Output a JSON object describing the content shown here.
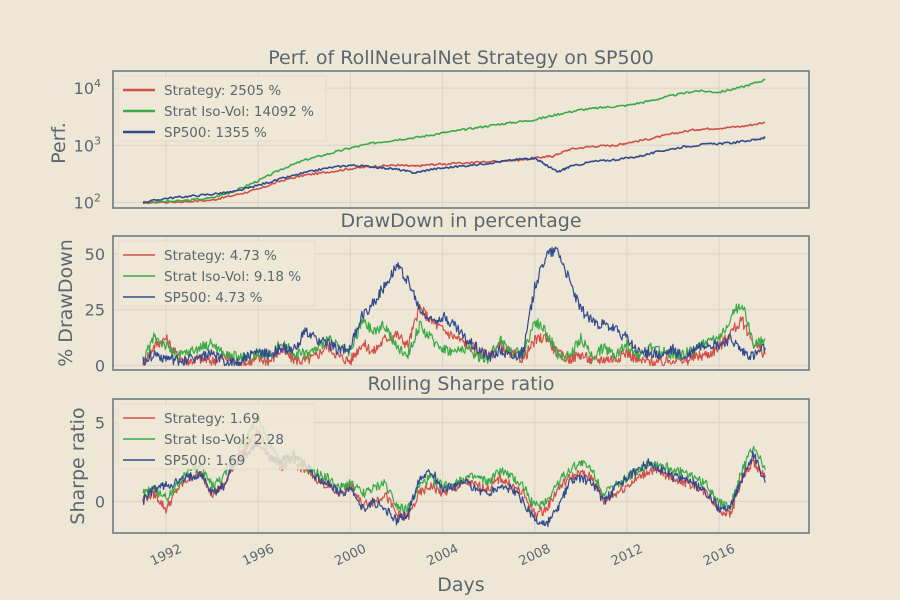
{
  "colors": {
    "background": "#efe7d6",
    "axes_frame": "#6d7b84",
    "grid": "#ddd5cc",
    "text": "#5b6770",
    "strategy": "#d0504a",
    "iso_vol": "#3aaa48",
    "sp500": "#334a8c"
  },
  "xlabel": "Days",
  "x_ticks": [
    "1992",
    "1996",
    "2000",
    "2004",
    "2008",
    "2012",
    "2016"
  ],
  "chart_data": [
    {
      "type": "line",
      "title": "Perf. of RollNeuralNet Strategy on SP500",
      "ylabel": "Perf.",
      "yscale": "log",
      "ylim": [
        80,
        20000
      ],
      "xlim": [
        1989.7,
        2019.9
      ],
      "yticks": [
        100,
        1000,
        10000
      ],
      "ytick_labels": [
        {
          "base": "10",
          "exp": "2"
        },
        {
          "base": "10",
          "exp": "3"
        },
        {
          "base": "10",
          "exp": "4"
        }
      ],
      "legend_position": "top-left",
      "series": [
        {
          "name": "Strategy: 2505 %",
          "color_key": "strategy",
          "x": [
            1991.0,
            1992.5,
            1994.0,
            1995.0,
            1996.0,
            1997.0,
            1998.0,
            1999.0,
            2000.0,
            2001.0,
            2002.0,
            2002.8,
            2003.5,
            2004.5,
            2006.0,
            2007.5,
            2008.3,
            2008.8,
            2009.5,
            2010.5,
            2011.5,
            2012.0,
            2013.0,
            2014.0,
            2015.0,
            2016.0,
            2017.0,
            2018.0
          ],
          "y": [
            100,
            102,
            110,
            135,
            170,
            240,
            300,
            340,
            390,
            430,
            450,
            430,
            460,
            480,
            520,
            560,
            620,
            650,
            850,
            960,
            1000,
            1100,
            1300,
            1600,
            1900,
            2000,
            2150,
            2505
          ]
        },
        {
          "name": "Strat Iso-Vol: 14092 %",
          "color_key": "iso_vol",
          "x": [
            1991.0,
            1992.5,
            1994.0,
            1995.0,
            1996.0,
            1997.0,
            1998.0,
            1999.0,
            2000.0,
            2001.0,
            2002.0,
            2003.0,
            2004.0,
            2005.0,
            2006.0,
            2007.0,
            2008.0,
            2009.0,
            2010.0,
            2011.0,
            2012.0,
            2013.0,
            2014.0,
            2015.0,
            2016.0,
            2017.0,
            2018.0
          ],
          "y": [
            100,
            105,
            120,
            160,
            240,
            380,
            550,
            700,
            900,
            1100,
            1250,
            1400,
            1650,
            1900,
            2200,
            2500,
            2800,
            3500,
            4200,
            4600,
            5000,
            6000,
            7500,
            9000,
            8500,
            10500,
            14092
          ]
        },
        {
          "name": "SP500: 1355 %",
          "color_key": "sp500",
          "x": [
            1991.0,
            1992.0,
            1993.0,
            1994.0,
            1995.0,
            1996.0,
            1997.0,
            1998.0,
            1999.0,
            2000.0,
            2001.0,
            2002.0,
            2002.8,
            2003.5,
            2004.5,
            2005.5,
            2006.5,
            2007.5,
            2008.0,
            2008.5,
            2009.0,
            2009.5,
            2010.5,
            2011.5,
            2012.5,
            2013.5,
            2014.5,
            2015.5,
            2016.5,
            2017.5,
            2018.0
          ],
          "y": [
            100,
            118,
            128,
            140,
            155,
            200,
            260,
            330,
            400,
            450,
            420,
            380,
            330,
            380,
            420,
            460,
            520,
            580,
            600,
            450,
            340,
            420,
            520,
            560,
            640,
            800,
            950,
            1050,
            1100,
            1250,
            1355
          ]
        }
      ]
    },
    {
      "type": "line",
      "title": "DrawDown in percentage",
      "ylabel": "% DrawDown",
      "ylim": [
        -2,
        58
      ],
      "xlim": [
        1989.7,
        2019.9
      ],
      "yticks": [
        0,
        25,
        50
      ],
      "ytick_labels": [
        "0",
        "25",
        "50"
      ],
      "legend_position": "top-left",
      "series": [
        {
          "name": "Strategy: 4.73 %",
          "color_key": "strategy",
          "x": [
            1991.0,
            1991.5,
            1992.0,
            1992.5,
            1993.0,
            1993.5,
            1994.0,
            1994.5,
            1995.0,
            1995.5,
            1996.0,
            1996.5,
            1997.0,
            1997.5,
            1998.0,
            1998.5,
            1999.0,
            1999.5,
            2000.0,
            2000.5,
            2001.0,
            2001.5,
            2002.0,
            2002.5,
            2003.0,
            2003.5,
            2004.0,
            2004.5,
            2005.0,
            2005.5,
            2006.0,
            2006.5,
            2007.0,
            2007.5,
            2008.0,
            2008.5,
            2009.0,
            2009.5,
            2010.0,
            2010.5,
            2011.0,
            2011.5,
            2012.0,
            2012.5,
            2013.0,
            2013.5,
            2014.0,
            2014.5,
            2015.0,
            2015.5,
            2016.0,
            2016.5,
            2017.0,
            2017.5,
            2018.0
          ],
          "y": [
            1,
            9,
            12,
            4,
            2,
            3,
            2,
            4,
            2,
            1,
            3,
            2,
            7,
            3,
            2,
            4,
            9,
            4,
            2,
            10,
            6,
            12,
            14,
            9,
            26,
            20,
            16,
            13,
            10,
            7,
            4,
            9,
            5,
            3,
            11,
            13,
            5,
            3,
            5,
            2,
            3,
            3,
            6,
            2,
            2,
            1,
            3,
            2,
            4,
            5,
            8,
            15,
            20,
            10,
            5
          ]
        },
        {
          "name": "Strat Iso-Vol: 9.18 %",
          "color_key": "iso_vol",
          "x": [
            1991.0,
            1991.5,
            1992.0,
            1992.5,
            1993.0,
            1993.5,
            1994.0,
            1994.5,
            1995.0,
            1995.5,
            1996.0,
            1996.5,
            1997.0,
            1997.5,
            1998.0,
            1998.5,
            1999.0,
            1999.5,
            2000.0,
            2000.5,
            2001.0,
            2001.5,
            2002.0,
            2002.5,
            2003.0,
            2003.5,
            2004.0,
            2004.5,
            2005.0,
            2005.5,
            2006.0,
            2006.5,
            2007.0,
            2007.5,
            2008.0,
            2008.5,
            2009.0,
            2009.5,
            2010.0,
            2010.5,
            2011.0,
            2011.5,
            2012.0,
            2012.5,
            2013.0,
            2013.5,
            2014.0,
            2014.5,
            2015.0,
            2015.5,
            2016.0,
            2016.5,
            2017.0,
            2017.5,
            2018.0
          ],
          "y": [
            2,
            13,
            9,
            4,
            6,
            8,
            10,
            5,
            4,
            3,
            6,
            4,
            10,
            6,
            5,
            7,
            12,
            8,
            5,
            20,
            15,
            18,
            8,
            5,
            18,
            12,
            8,
            6,
            8,
            4,
            3,
            12,
            6,
            5,
            20,
            15,
            5,
            4,
            12,
            4,
            8,
            5,
            10,
            4,
            8,
            6,
            5,
            5,
            8,
            10,
            12,
            22,
            28,
            10,
            12
          ]
        },
        {
          "name": "SP500: 4.73 %",
          "color_key": "sp500",
          "x": [
            1991.0,
            1991.5,
            1992.0,
            1992.5,
            1993.0,
            1993.5,
            1994.0,
            1994.5,
            1995.0,
            1995.5,
            1996.0,
            1996.5,
            1997.0,
            1997.5,
            1998.0,
            1998.5,
            1999.0,
            1999.5,
            2000.0,
            2000.5,
            2001.0,
            2001.5,
            2002.0,
            2002.5,
            2003.0,
            2003.5,
            2004.0,
            2004.5,
            2005.0,
            2005.5,
            2006.0,
            2006.5,
            2007.0,
            2007.5,
            2008.0,
            2008.5,
            2009.0,
            2009.5,
            2010.0,
            2010.5,
            2011.0,
            2011.5,
            2012.0,
            2012.5,
            2013.0,
            2013.5,
            2014.0,
            2014.5,
            2015.0,
            2015.5,
            2016.0,
            2016.5,
            2017.0,
            2017.5,
            2018.0
          ],
          "y": [
            2,
            5,
            3,
            2,
            3,
            4,
            5,
            2,
            1,
            4,
            6,
            5,
            8,
            6,
            15,
            12,
            10,
            7,
            8,
            22,
            28,
            36,
            45,
            38,
            25,
            20,
            22,
            18,
            12,
            8,
            4,
            7,
            4,
            6,
            35,
            50,
            52,
            38,
            25,
            20,
            18,
            16,
            12,
            6,
            6,
            4,
            7,
            3,
            8,
            10,
            9,
            12,
            6,
            4,
            8
          ]
        }
      ]
    },
    {
      "type": "line",
      "title": "Rolling Sharpe ratio",
      "ylabel": "Sharpe ratio",
      "ylim": [
        -2,
        6.5
      ],
      "xlim": [
        1989.7,
        2019.9
      ],
      "yticks": [
        0,
        5
      ],
      "ytick_labels": [
        "0",
        "5"
      ],
      "legend_position": "top-left",
      "series": [
        {
          "name": "Strategy: 1.69",
          "color_key": "strategy",
          "x": [
            1991.0,
            1991.5,
            1992.0,
            1992.5,
            1993.0,
            1993.5,
            1994.0,
            1994.5,
            1995.0,
            1995.5,
            1996.0,
            1996.5,
            1997.0,
            1997.5,
            1998.0,
            1998.5,
            1999.0,
            1999.5,
            2000.0,
            2000.5,
            2001.0,
            2001.5,
            2002.0,
            2002.5,
            2003.0,
            2003.5,
            2004.0,
            2004.5,
            2005.0,
            2005.5,
            2006.0,
            2006.5,
            2007.0,
            2007.5,
            2008.0,
            2008.5,
            2009.0,
            2009.5,
            2010.0,
            2010.5,
            2011.0,
            2011.5,
            2012.0,
            2012.5,
            2013.0,
            2013.5,
            2014.0,
            2014.5,
            2015.0,
            2015.5,
            2016.0,
            2016.5,
            2017.0,
            2017.5,
            2018.0
          ],
          "y": [
            0.2,
            0.5,
            -0.5,
            0.8,
            1.5,
            1.8,
            0.5,
            1.0,
            2.5,
            3.5,
            4.5,
            3.0,
            2.2,
            2.5,
            2.0,
            1.5,
            1.0,
            0.5,
            1.0,
            -0.2,
            0,
            0.5,
            -0.8,
            -1.0,
            0.5,
            1.0,
            0.5,
            0.8,
            1.2,
            1.0,
            0.8,
            1.5,
            1.0,
            0.5,
            -0.8,
            -0.5,
            0.8,
            1.5,
            1.8,
            1.5,
            0,
            0.5,
            1.0,
            1.5,
            2.0,
            1.8,
            1.5,
            1.2,
            1.0,
            0.5,
            -0.5,
            -0.8,
            1.5,
            2.5,
            1.5
          ]
        },
        {
          "name": "Strat Iso-Vol: 2.28",
          "color_key": "iso_vol",
          "x": [
            1991.0,
            1991.5,
            1992.0,
            1992.5,
            1993.0,
            1993.5,
            1994.0,
            1994.5,
            1995.0,
            1995.5,
            1996.0,
            1996.5,
            1997.0,
            1997.5,
            1998.0,
            1998.5,
            1999.0,
            1999.5,
            2000.0,
            2000.5,
            2001.0,
            2001.5,
            2002.0,
            2002.5,
            2003.0,
            2003.5,
            2004.0,
            2004.5,
            2005.0,
            2005.5,
            2006.0,
            2006.5,
            2007.0,
            2007.5,
            2008.0,
            2008.5,
            2009.0,
            2009.5,
            2010.0,
            2010.5,
            2011.0,
            2011.5,
            2012.0,
            2012.5,
            2013.0,
            2013.5,
            2014.0,
            2014.5,
            2015.0,
            2015.5,
            2016.0,
            2016.5,
            2017.0,
            2017.5,
            2018.0
          ],
          "y": [
            0.5,
            0.8,
            0.2,
            1.0,
            2.0,
            2.2,
            1.0,
            1.5,
            3.0,
            4.0,
            5.5,
            3.5,
            2.5,
            2.8,
            2.2,
            1.8,
            1.5,
            0.8,
            1.2,
            0.5,
            0.8,
            1.2,
            -0.2,
            -0.5,
            1.0,
            1.5,
            1.0,
            1.2,
            1.5,
            1.5,
            1.2,
            2.0,
            1.5,
            1.0,
            -0.3,
            0,
            1.2,
            2.0,
            2.5,
            2.0,
            0.5,
            1.0,
            1.5,
            2.0,
            2.5,
            2.3,
            2.0,
            1.8,
            1.5,
            1.0,
            0,
            -0.3,
            2.0,
            3.5,
            2.0
          ]
        },
        {
          "name": "SP500: 1.69",
          "color_key": "sp500",
          "x": [
            1991.0,
            1991.5,
            1992.0,
            1992.5,
            1993.0,
            1993.5,
            1994.0,
            1994.5,
            1995.0,
            1995.5,
            1996.0,
            1996.5,
            1997.0,
            1997.5,
            1998.0,
            1998.5,
            1999.0,
            1999.5,
            2000.0,
            2000.5,
            2001.0,
            2001.5,
            2002.0,
            2002.5,
            2003.0,
            2003.5,
            2004.0,
            2004.5,
            2005.0,
            2005.5,
            2006.0,
            2006.5,
            2007.0,
            2007.5,
            2008.0,
            2008.5,
            2009.0,
            2009.5,
            2010.0,
            2010.5,
            2011.0,
            2011.5,
            2012.0,
            2012.5,
            2013.0,
            2013.5,
            2014.0,
            2014.5,
            2015.0,
            2015.5,
            2016.0,
            2016.5,
            2017.0,
            2017.5,
            2018.0
          ],
          "y": [
            0,
            0.8,
            1.0,
            1.2,
            1.5,
            1.8,
            0.5,
            1.0,
            2.5,
            3.0,
            3.8,
            2.8,
            2.5,
            3.0,
            2.5,
            1.5,
            1.2,
            0.5,
            0.8,
            -0.5,
            0,
            -0.5,
            -1.2,
            -0.8,
            1.5,
            2.0,
            0.8,
            1.0,
            1.2,
            0.8,
            0.5,
            1.0,
            0.8,
            0,
            -1.2,
            -1.5,
            -0.5,
            1.2,
            1.5,
            1.2,
            0,
            0.8,
            1.5,
            2.0,
            2.5,
            2.0,
            1.5,
            1.5,
            1.0,
            0.5,
            -0.5,
            -0.3,
            1.5,
            3.0,
            1.2
          ]
        }
      ]
    }
  ]
}
